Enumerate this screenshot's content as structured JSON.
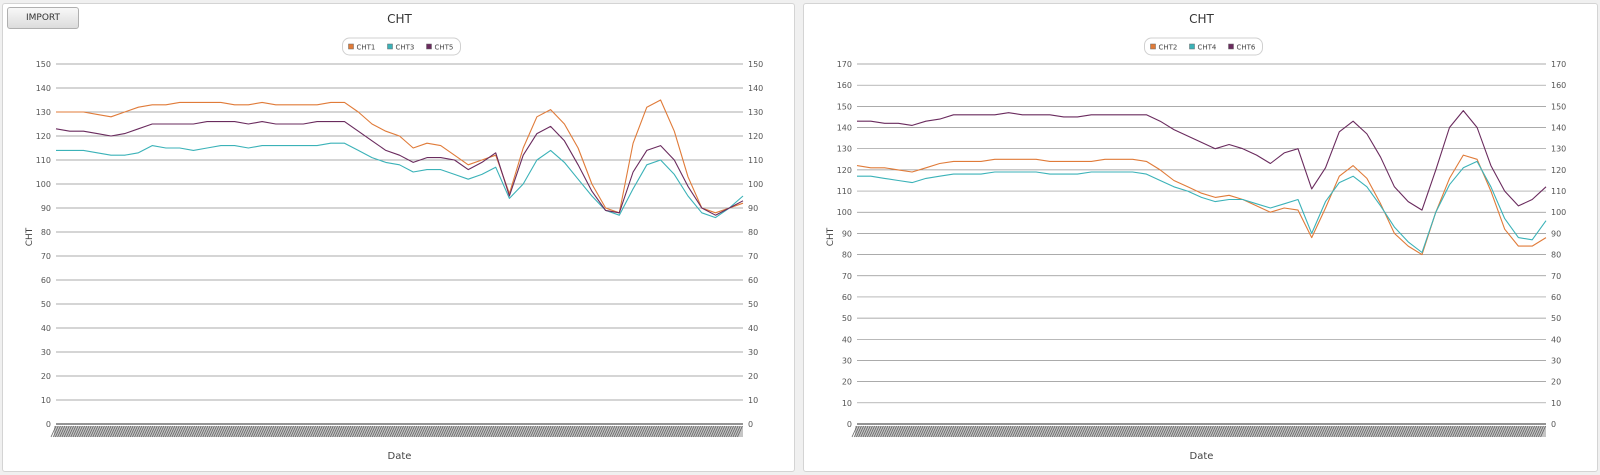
{
  "toolbar": {
    "import_label": "IMPORT"
  },
  "chart_data": [
    {
      "type": "line",
      "title": "CHT",
      "xlabel": "Date",
      "ylabel": "CHT",
      "ylim": [
        0,
        150
      ],
      "ytick_step": 10,
      "grid": true,
      "legend": "top-center",
      "x": [
        0,
        2,
        4,
        6,
        8,
        10,
        12,
        14,
        16,
        18,
        20,
        22,
        24,
        26,
        28,
        30,
        32,
        34,
        36,
        38,
        40,
        42,
        44,
        46,
        48,
        50,
        52,
        54,
        56,
        58,
        60,
        62,
        64,
        66,
        68,
        70,
        72,
        74,
        76,
        78,
        80,
        82,
        84,
        86,
        88,
        90,
        92,
        94,
        96,
        98,
        100
      ],
      "series": [
        {
          "name": "CHT1",
          "color": "#e07b39",
          "values": [
            130,
            130,
            130,
            129,
            128,
            130,
            132,
            133,
            133,
            134,
            134,
            134,
            134,
            133,
            133,
            134,
            133,
            133,
            133,
            133,
            134,
            134,
            130,
            125,
            122,
            120,
            115,
            117,
            116,
            112,
            108,
            110,
            112,
            96,
            115,
            128,
            131,
            125,
            115,
            100,
            90,
            88,
            117,
            132,
            135,
            122,
            103,
            90,
            88,
            90,
            92
          ]
        },
        {
          "name": "CHT3",
          "color": "#3bb2b8",
          "values": [
            114,
            114,
            114,
            113,
            112,
            112,
            113,
            116,
            115,
            115,
            114,
            115,
            116,
            116,
            115,
            116,
            116,
            116,
            116,
            116,
            117,
            117,
            114,
            111,
            109,
            108,
            105,
            106,
            106,
            104,
            102,
            104,
            107,
            94,
            100,
            110,
            114,
            109,
            102,
            95,
            89,
            87,
            98,
            108,
            110,
            104,
            95,
            88,
            86,
            90,
            95
          ]
        },
        {
          "name": "CHT5",
          "color": "#6a2b5e",
          "values": [
            123,
            122,
            122,
            121,
            120,
            121,
            123,
            125,
            125,
            125,
            125,
            126,
            126,
            126,
            125,
            126,
            125,
            125,
            125,
            126,
            126,
            126,
            122,
            118,
            114,
            112,
            109,
            111,
            111,
            110,
            106,
            109,
            113,
            95,
            112,
            121,
            124,
            118,
            108,
            97,
            89,
            88,
            105,
            114,
            116,
            110,
            99,
            90,
            87,
            90,
            93
          ]
        }
      ]
    },
    {
      "type": "line",
      "title": "CHT",
      "xlabel": "Date",
      "ylabel": "CHT",
      "ylim": [
        0,
        170
      ],
      "ytick_step": 10,
      "grid": true,
      "legend": "top-center",
      "x": [
        0,
        2,
        4,
        6,
        8,
        10,
        12,
        14,
        16,
        18,
        20,
        22,
        24,
        26,
        28,
        30,
        32,
        34,
        36,
        38,
        40,
        42,
        44,
        46,
        48,
        50,
        52,
        54,
        56,
        58,
        60,
        62,
        64,
        66,
        68,
        70,
        72,
        74,
        76,
        78,
        80,
        82,
        84,
        86,
        88,
        90,
        92,
        94,
        96,
        98,
        100
      ],
      "series": [
        {
          "name": "CHT2",
          "color": "#e07b39",
          "values": [
            122,
            121,
            121,
            120,
            119,
            121,
            123,
            124,
            124,
            124,
            125,
            125,
            125,
            125,
            124,
            124,
            124,
            124,
            125,
            125,
            125,
            124,
            120,
            115,
            112,
            109,
            107,
            108,
            106,
            103,
            100,
            102,
            101,
            88,
            102,
            117,
            122,
            116,
            104,
            90,
            84,
            80,
            100,
            116,
            127,
            125,
            110,
            92,
            84,
            84,
            88
          ]
        },
        {
          "name": "CHT4",
          "color": "#3bb2b8",
          "values": [
            117,
            117,
            116,
            115,
            114,
            116,
            117,
            118,
            118,
            118,
            119,
            119,
            119,
            119,
            118,
            118,
            118,
            119,
            119,
            119,
            119,
            118,
            115,
            112,
            110,
            107,
            105,
            106,
            106,
            104,
            102,
            104,
            106,
            90,
            105,
            114,
            117,
            112,
            103,
            93,
            86,
            81,
            100,
            113,
            121,
            124,
            112,
            97,
            88,
            87,
            96
          ]
        },
        {
          "name": "CHT6",
          "color": "#6a2b5e",
          "values": [
            143,
            143,
            142,
            142,
            141,
            143,
            144,
            146,
            146,
            146,
            146,
            147,
            146,
            146,
            146,
            145,
            145,
            146,
            146,
            146,
            146,
            146,
            143,
            139,
            136,
            133,
            130,
            132,
            130,
            127,
            123,
            128,
            130,
            111,
            121,
            138,
            143,
            137,
            126,
            112,
            105,
            101,
            120,
            140,
            148,
            140,
            122,
            110,
            103,
            106,
            112
          ]
        }
      ]
    }
  ]
}
